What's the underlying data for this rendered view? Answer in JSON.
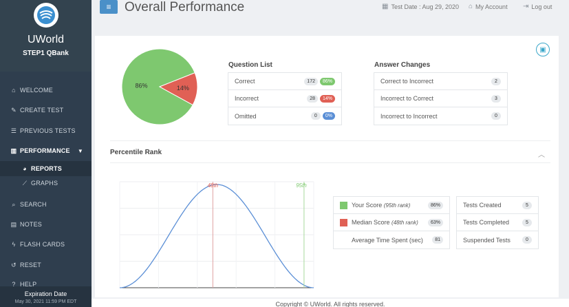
{
  "sidebar": {
    "brand": "UWorld",
    "product": "STEP1 QBank",
    "items": [
      {
        "label": "WELCOME",
        "icon": "home-icon"
      },
      {
        "label": "CREATE TEST",
        "icon": "edit-icon"
      },
      {
        "label": "PREVIOUS TESTS",
        "icon": "list-icon"
      },
      {
        "label": "PERFORMANCE",
        "icon": "chart-icon"
      },
      {
        "label": "REPORTS",
        "icon": "pie-icon"
      },
      {
        "label": "GRAPHS",
        "icon": "line-chart-icon"
      },
      {
        "label": "SEARCH",
        "icon": "search-icon"
      },
      {
        "label": "NOTES",
        "icon": "note-icon"
      },
      {
        "label": "FLASH CARDS",
        "icon": "bolt-icon"
      },
      {
        "label": "RESET",
        "icon": "reset-icon"
      },
      {
        "label": "HELP",
        "icon": "help-icon"
      }
    ],
    "expiry_label": "Expiration Date",
    "expiry_date": "May 30, 2021 11:59 PM EDT"
  },
  "header": {
    "title": "Overall Performance",
    "test_date": "Test Date : Aug 29, 2020",
    "account": "My Account",
    "logout": "Log out"
  },
  "score_pie": {
    "correct_pct": 86,
    "incorrect_pct": 14,
    "correct_label": "86%",
    "incorrect_label": "14%",
    "colors": {
      "correct": "#7ec86f",
      "incorrect": "#e06055"
    }
  },
  "question_list": {
    "title": "Question List",
    "rows": [
      {
        "label": "Correct",
        "count": "172",
        "pct": "86%"
      },
      {
        "label": "Incorrect",
        "count": "28",
        "pct": "14%"
      },
      {
        "label": "Omitted",
        "count": "0",
        "pct": "0%"
      }
    ]
  },
  "answer_changes": {
    "title": "Answer Changes",
    "rows": [
      {
        "label": "Correct to Incorrect",
        "count": "2"
      },
      {
        "label": "Incorrect to Correct",
        "count": "3"
      },
      {
        "label": "Incorrect to Incorrect",
        "count": "0"
      }
    ]
  },
  "percentile": {
    "title": "Percentile Rank",
    "your_rank_label": "95th",
    "median_rank_label": "48th",
    "your_rank": 95,
    "median_rank": 48
  },
  "legend": {
    "your_score": "Your Score",
    "your_score_rank": "(95th rank)",
    "your_score_value": "86%",
    "median_score": "Median Score",
    "median_score_rank": "(48th rank)",
    "median_score_value": "63%",
    "avg_time_label": "Average Time Spent (sec)",
    "avg_time_value": "81"
  },
  "tests": {
    "rows": [
      {
        "label": "Tests Created",
        "value": "5"
      },
      {
        "label": "Tests Completed",
        "value": "5"
      },
      {
        "label": "Suspended Tests",
        "value": "0"
      }
    ]
  },
  "footer": "Copyright © UWorld. All rights reserved."
}
